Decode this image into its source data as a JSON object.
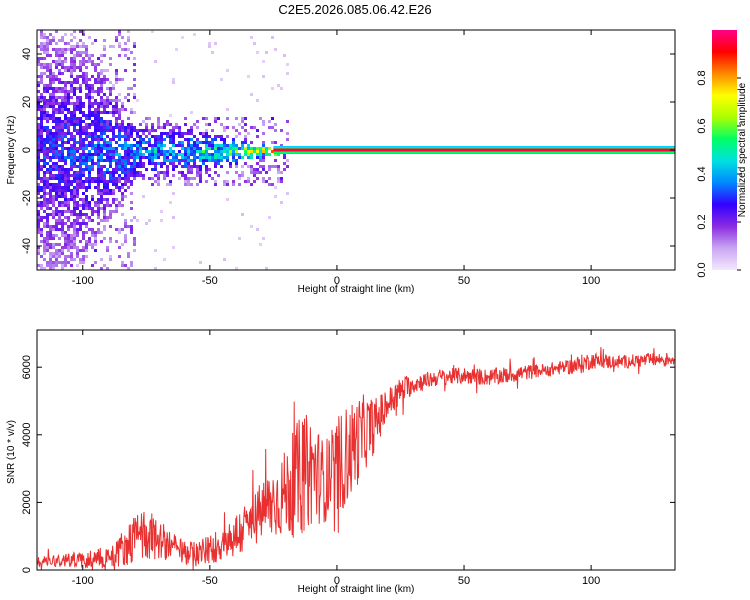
{
  "title": "C2E5.2026.085.06.42.E26",
  "chart_data": [
    {
      "type": "heatmap",
      "xlabel": "Height of straight line (km)",
      "ylabel": "Frequency (Hz)",
      "xlim": [
        -118,
        133
      ],
      "ylim": [
        -50,
        50
      ],
      "x_ticks": [
        "-100",
        "-50",
        "0",
        "50",
        "100"
      ],
      "y_ticks": [
        "-40",
        "-20",
        "0",
        "20",
        "40"
      ],
      "colorbar": {
        "label": "Normalized spectral amplitude",
        "range": [
          0,
          1
        ],
        "ticks": [
          "0.0",
          "0.2",
          "0.4",
          "0.6",
          "0.8"
        ],
        "colors": [
          "#f4e8ff",
          "#c9a6f2",
          "#8a2be2",
          "#3300ff",
          "#0088ff",
          "#00e0e0",
          "#00ff66",
          "#aaff00",
          "#ffff00",
          "#ff8800",
          "#ff0000",
          "#ff0088"
        ]
      },
      "carrier": {
        "frequency": 0,
        "x_start": -25,
        "x_end": 133,
        "amplitude": 0.95
      },
      "spread_profile": [
        {
          "x": -118,
          "halfwidth": 50,
          "amplitude": 0.3
        },
        {
          "x": -100,
          "halfwidth": 46,
          "amplitude": 0.32
        },
        {
          "x": -80,
          "halfwidth": 12,
          "amplitude": 0.4
        },
        {
          "x": -60,
          "halfwidth": 10,
          "amplitude": 0.45
        },
        {
          "x": -45,
          "halfwidth": 6,
          "amplitude": 0.55
        },
        {
          "x": -30,
          "halfwidth": 3,
          "amplitude": 0.75
        },
        {
          "x": -20,
          "halfwidth": 1.5,
          "amplitude": 0.9
        }
      ]
    },
    {
      "type": "line",
      "xlabel": "Height of straight line (km)",
      "ylabel": "SNR (10 * v/v)",
      "xlim": [
        -118,
        133
      ],
      "ylim": [
        0,
        7100
      ],
      "x_ticks": [
        "-100",
        "-50",
        "0",
        "50",
        "100"
      ],
      "y_ticks": [
        "0",
        "2000",
        "4000",
        "6000"
      ],
      "series": [
        {
          "color": "#e83030",
          "x": [
            -118,
            -110,
            -100,
            -90,
            -85,
            -80,
            -75,
            -70,
            -65,
            -60,
            -55,
            -50,
            -45,
            -40,
            -35,
            -30,
            -25,
            -20,
            -15,
            -10,
            -5,
            0,
            5,
            10,
            15,
            20,
            25,
            30,
            35,
            40,
            50,
            60,
            70,
            80,
            90,
            95,
            100,
            110,
            120,
            133
          ],
          "y": [
            250,
            300,
            300,
            400,
            600,
            900,
            1100,
            900,
            700,
            500,
            500,
            600,
            800,
            1000,
            1300,
            1700,
            2000,
            2300,
            2700,
            3000,
            2600,
            3000,
            3500,
            4000,
            4300,
            4900,
            5300,
            5500,
            5600,
            5700,
            5750,
            5700,
            5800,
            5900,
            6000,
            6050,
            6200,
            6150,
            6200,
            6250
          ],
          "noise": [
            150,
            200,
            250,
            350,
            500,
            700,
            800,
            600,
            450,
            350,
            400,
            450,
            550,
            700,
            800,
            900,
            1100,
            1300,
            1800,
            1700,
            1200,
            1500,
            1500,
            1200,
            800,
            500,
            400,
            300,
            250,
            250,
            250,
            250,
            250,
            200,
            200,
            300,
            250,
            200,
            200,
            200
          ]
        }
      ]
    }
  ]
}
